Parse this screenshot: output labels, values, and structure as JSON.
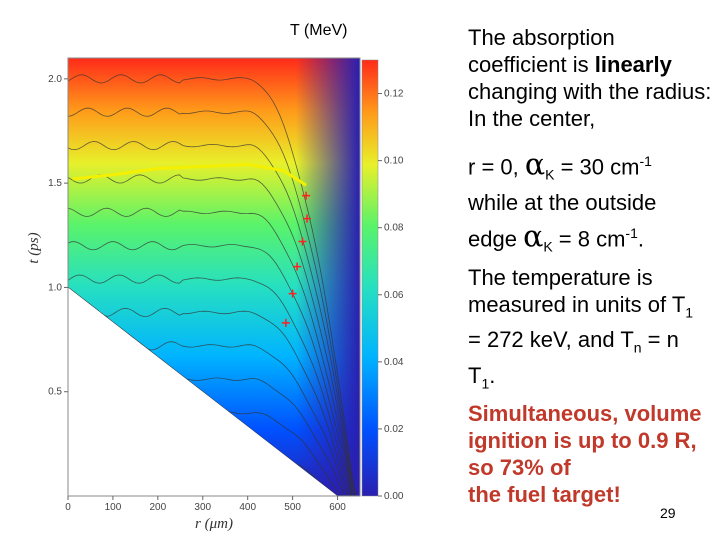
{
  "colorbar_title": "T (MeV)",
  "paragraphs": {
    "p1": {
      "a": "The absorption coefficient is ",
      "b": "linearly",
      "c": " changing with the radius: In the center,"
    },
    "p2": {
      "a": "r = 0, ",
      "alpha": "α",
      "sub": "K",
      "b": " = 30 cm",
      "sup": "-1",
      "c": " while at the outside"
    },
    "p3": {
      "a": "edge ",
      "alpha": "α",
      "sub": "K",
      "b": " = 8 cm",
      "sup": "-1",
      "c": "."
    },
    "p4": {
      "a": "The temperature is measured in units of T",
      "sub1": "1",
      "b": " = 272 keV, and T",
      "subn": "n",
      "c": " = n T",
      "sub2": "1",
      "d": "."
    },
    "p5": {
      "a": "Simultaneous, volume ignition is up to 0.9 R, so ",
      "b": "73%",
      "c": " of",
      "d": "the fuel target!"
    }
  },
  "slide_number": "29",
  "chart_data": {
    "type": "heatmap",
    "xlabel": "r (μm)",
    "ylabel": "t (ps)",
    "xlim": [
      0,
      650
    ],
    "ylim": [
      0,
      2.1
    ],
    "xticks": [
      0,
      100,
      200,
      300,
      400,
      500,
      600
    ],
    "yticks": [
      0.5,
      1.0,
      1.5,
      2.0
    ],
    "colorbar": {
      "range": [
        0,
        0.13
      ],
      "ticks": [
        0.0,
        0.02,
        0.04,
        0.06,
        0.08,
        0.1,
        0.12
      ],
      "colors": [
        "#2a1fb0",
        "#0050ff",
        "#00b4ff",
        "#27e0c0",
        "#5af36a",
        "#e8f02a",
        "#ff9a1a",
        "#ff2a1a"
      ]
    },
    "edge_line": {
      "x": [
        0,
        600
      ],
      "y": [
        1.0,
        0.0
      ]
    },
    "ignition_line": {
      "color": "#f5f000",
      "points": [
        [
          10,
          1.52
        ],
        [
          100,
          1.54
        ],
        [
          200,
          1.57
        ],
        [
          300,
          1.58
        ],
        [
          400,
          1.59
        ],
        [
          480,
          1.56
        ],
        [
          530,
          1.49
        ]
      ]
    },
    "markers": [
      {
        "r": 530,
        "t": 1.44
      },
      {
        "r": 532,
        "t": 1.33
      },
      {
        "r": 522,
        "t": 1.22
      },
      {
        "r": 510,
        "t": 1.1
      },
      {
        "r": 500,
        "t": 0.97
      },
      {
        "r": 485,
        "t": 0.83
      }
    ]
  }
}
